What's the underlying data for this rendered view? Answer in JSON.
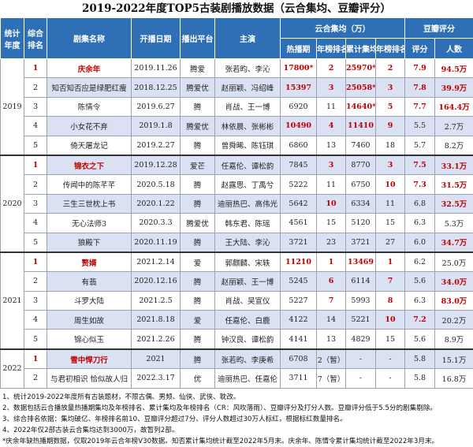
{
  "title": "2019-2022年度TOP5古装剧播放数据（云合集均、豆瓣评分）",
  "headers": {
    "year": "统计年度",
    "rank": "综合排名",
    "name": "剧集名称",
    "date": "开播日期",
    "platform": "播出平台",
    "cast": "主演",
    "yunhe": "云合集均（万）",
    "douban": "豆瓣评分",
    "hot": "热播期",
    "hot_rank": "年榜排名",
    "cum": "累计集均",
    "cum_rank": "年榜排名",
    "score": "评分",
    "voters": "人数"
  },
  "colors": {
    "header": "#2f6fb5",
    "highlight": "#c00000",
    "stripe": "#d9e1f2"
  },
  "groups": [
    {
      "year": "2019",
      "rows": [
        {
          "cells": [
            "1",
            "庆余年",
            "2019.11.26",
            "腾爱",
            "张若昀、李沁",
            "17800*",
            "2",
            "25970*",
            "2",
            "7.9",
            "94.5万"
          ],
          "red": [
            0,
            1,
            5,
            6,
            7,
            8,
            9,
            10
          ]
        },
        {
          "cells": [
            "2",
            "知否知否应是绿肥红瘦",
            "2018.12.25",
            "腾爱优",
            "赵丽颖、冯绍峰",
            "15397",
            "3",
            "25058*",
            "3",
            "7.8",
            "39.9万"
          ],
          "red": [
            5,
            6,
            7,
            8,
            9,
            10
          ]
        },
        {
          "cells": [
            "3",
            "陈情令",
            "2019.6.27",
            "腾",
            "肖战、王一博",
            "6920",
            "11",
            "14640*",
            "5",
            "7.7",
            "164.4万"
          ],
          "red": [
            7,
            8,
            9,
            10
          ]
        },
        {
          "cells": [
            "4",
            "小女花不弃",
            "2019.1.8",
            "腾爱优",
            "林依晨、张彬彬",
            "10490",
            "4",
            "11410",
            "9",
            "5.5",
            "2.7万"
          ],
          "red": [
            5,
            6,
            7,
            8
          ]
        },
        {
          "cells": [
            "5",
            "倚天屠龙记",
            "2019.2.27",
            "腾",
            "曾舜晞、陈钰琪",
            "6860",
            "13",
            "7460",
            "18",
            "5.7",
            "8.2万"
          ],
          "red": []
        }
      ]
    },
    {
      "year": "2020",
      "rows": [
        {
          "cells": [
            "1",
            "锦衣之下",
            "2019.12.28",
            "爱芒",
            "任嘉伦、谭松韵",
            "7845",
            "3",
            "8770",
            "3",
            "7.5",
            "33.1万"
          ],
          "red": [
            0,
            1,
            6,
            8,
            9,
            10
          ]
        },
        {
          "cells": [
            "2",
            "传闻中的陈芊芊",
            "2020.5.18",
            "腾",
            "赵露思、丁禹兮",
            "5222",
            "11",
            "6750",
            "10",
            "7.3",
            "31.5万"
          ],
          "red": [
            8,
            9,
            10
          ]
        },
        {
          "cells": [
            "3",
            "三生三世枕上书",
            "2020.1.22",
            "腾",
            "迪丽热巴、高伟光",
            "5642",
            "10",
            "6334",
            "11",
            "6.8",
            "32.5万"
          ],
          "red": [
            6,
            10
          ]
        },
        {
          "cells": [
            "4",
            "无心法师3",
            "2020.3.3",
            "腾爱优",
            "韩东君、陈瑶",
            "4561",
            "15",
            "5120",
            "15",
            "6.3",
            "5.3万"
          ],
          "red": []
        },
        {
          "cells": [
            "5",
            "狼殿下",
            "2020.11.19",
            "腾",
            "王大陆、李沁",
            "3721",
            "23",
            "3721",
            "27",
            "6.0",
            "34.7万"
          ],
          "red": [
            10
          ]
        }
      ]
    },
    {
      "year": "2021",
      "rows": [
        {
          "cells": [
            "1",
            "赘婿",
            "2021.2.14",
            "爱",
            "郭麒麟、宋轶",
            "11210",
            "1",
            "13469",
            "1",
            "6.2",
            "25.0万"
          ],
          "red": [
            0,
            1,
            5,
            6,
            7,
            8
          ]
        },
        {
          "cells": [
            "2",
            "有翡",
            "2020.12.16",
            "腾",
            "赵丽颖、王一博",
            "5245",
            "6",
            "6114",
            "7",
            "5.6",
            "34.0万"
          ],
          "red": [
            6,
            8,
            10
          ]
        },
        {
          "cells": [
            "3",
            "斗罗大陆",
            "2021.2.5",
            "腾",
            "肖战、吴宣仪",
            "5227",
            "7",
            "5993",
            "8",
            "6.3",
            "83.0万"
          ],
          "red": [
            6,
            8,
            10
          ]
        },
        {
          "cells": [
            "4",
            "周生如故",
            "2021.8.18",
            "爱",
            "任嘉伦、白鹿",
            "4122",
            "14",
            "5221",
            "10",
            "7.2",
            "20.2万"
          ],
          "red": [
            8,
            9
          ]
        },
        {
          "cells": [
            "5",
            "锦心似玉",
            "2021.2.26",
            "腾",
            "钟汉良、谭松韵",
            "4141",
            "13",
            "4829",
            "15",
            "5.6",
            "8.9万"
          ],
          "red": []
        }
      ]
    },
    {
      "year": "2022",
      "rows": [
        {
          "cells": [
            "1",
            "雪中悍刀行",
            "2021",
            "腾",
            "张若昀、李庚希",
            "6708",
            "2（暂）",
            "-",
            "-",
            "5.8",
            "15.1万"
          ],
          "red": [
            0,
            1
          ]
        },
        {
          "cells": [
            "2",
            "与君初相识 恰似故人归",
            "2022.3.17",
            "优",
            "迪丽热巴、任嘉伦",
            "3711",
            "7（暂）",
            "-",
            "-",
            "5.8",
            "16.8万"
          ],
          "red": []
        }
      ]
    }
  ],
  "notes": [
    "1、统计2019-2022年度所有古装题材，不限古偶、男频、仙侠、武侠、耽改。",
    "2、数据包括云合播放量热播期集均及年榜排名、累计集均及年榜排名（CR：风吹落雨）、豆瓣评分及打分人数。豆瓣评分低于5.5分的剧集剔除。",
    "3、综合排名依据：集均破亿、年榜排名前10、豆瓣评分超过7分、评分人数超过30万人标红，根据标红数量排名。",
    "4、2022年仅2部古装云合集均达到3000万，故暂列2部。",
    "*庆余年缺热播期数据，仅取2019年云合年榜V30数据。知否累计集均统计截至2022年5月末。庆余年、陈情令累计集均统计截至2022年3月末。"
  ]
}
